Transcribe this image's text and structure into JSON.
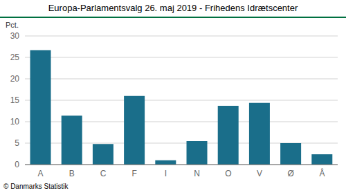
{
  "chart_data": {
    "type": "bar",
    "title": "Europa-Parlamentsvalg 26. maj 2019 - Frihedens Idrætscenter",
    "categories": [
      "A",
      "B",
      "C",
      "F",
      "I",
      "N",
      "O",
      "V",
      "Ø",
      "Å"
    ],
    "values": [
      26.7,
      11.4,
      4.8,
      16.0,
      1.0,
      5.5,
      13.7,
      14.4,
      5.0,
      2.4
    ],
    "color": "#1a6e8a",
    "ylabel": "Pct.",
    "footer": "© Danmarks Statistik",
    "ylim": [
      0,
      30
    ],
    "yticks": [
      0,
      5,
      10,
      15,
      20,
      25,
      30
    ],
    "grid": true
  }
}
